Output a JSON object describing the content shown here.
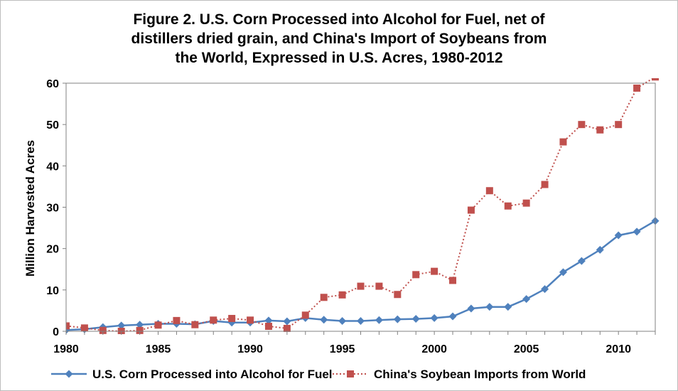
{
  "chart_data": {
    "type": "line",
    "title_lines": [
      "Figure 2.  U.S. Corn Processed into Alcohol for Fuel, net of",
      "distillers dried grain, and China's Import of Soybeans from",
      "the World, Expressed in U.S. Acres, 1980-2012"
    ],
    "xlabel": "",
    "ylabel": "Million Harvested Acres",
    "xlim": [
      1980,
      2012
    ],
    "ylim": [
      0,
      60
    ],
    "x_ticks": [
      1980,
      1985,
      1990,
      1995,
      2000,
      2005,
      2010
    ],
    "y_ticks": [
      0,
      10,
      20,
      30,
      40,
      50,
      60
    ],
    "grid": false,
    "legend_position": "bottom",
    "x": [
      1980,
      1981,
      1982,
      1983,
      1984,
      1985,
      1986,
      1987,
      1988,
      1989,
      1990,
      1991,
      1992,
      1993,
      1994,
      1995,
      1996,
      1997,
      1998,
      1999,
      2000,
      2001,
      2002,
      2003,
      2004,
      2005,
      2006,
      2007,
      2008,
      2009,
      2010,
      2011,
      2012
    ],
    "series": [
      {
        "name": "U.S. Corn Processed into Alcohol for Fuel",
        "color": "#4f81bd",
        "line_style": "solid",
        "marker": "diamond",
        "values": [
          0.3,
          0.5,
          1.0,
          1.4,
          1.6,
          1.8,
          1.8,
          1.7,
          2.5,
          2.1,
          2.1,
          2.6,
          2.4,
          3.2,
          2.8,
          2.5,
          2.5,
          2.7,
          2.9,
          3.0,
          3.2,
          3.6,
          5.5,
          5.9,
          5.9,
          7.8,
          10.2,
          14.3,
          17.0,
          19.7,
          23.2,
          24.1,
          26.7
        ]
      },
      {
        "name": "China's Soybean Imports from World",
        "color": "#c0504d",
        "line_style": "dotted",
        "marker": "square",
        "values": [
          1.3,
          0.8,
          0.2,
          0.0,
          0.2,
          1.5,
          2.6,
          1.6,
          2.7,
          3.1,
          2.7,
          1.2,
          0.7,
          3.9,
          8.2,
          8.8,
          10.9,
          10.9,
          8.9,
          13.7,
          14.5,
          12.3,
          29.3,
          34.0,
          30.3,
          31.0,
          35.5,
          45.8,
          50.0,
          48.7,
          50.0,
          58.8,
          61.5
        ]
      }
    ]
  }
}
